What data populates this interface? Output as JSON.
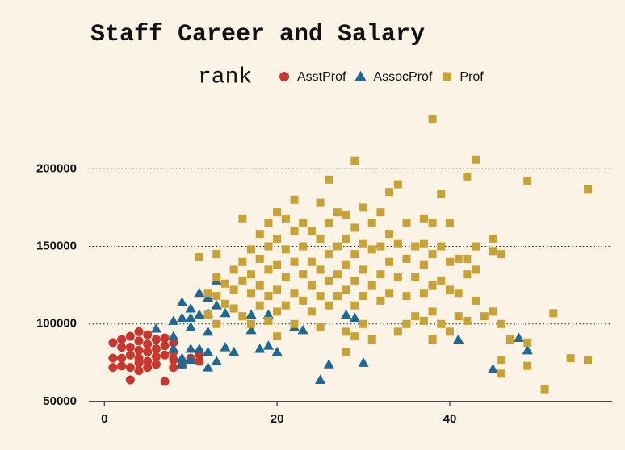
{
  "chart_data": {
    "type": "scatter",
    "title": "Staff Career and Salary",
    "legend_title": "rank",
    "legend_position": "top",
    "grid": true,
    "xlim": [
      -1.8,
      58.8
    ],
    "xticks": [
      0,
      20,
      40
    ],
    "ylim": [
      50000,
      236000
    ],
    "yticks": [
      50000,
      100000,
      150000,
      200000
    ],
    "series": [
      {
        "name": "AsstProf",
        "color": "#c8372d",
        "marker": "circle",
        "x": [
          1,
          1,
          1,
          2,
          2,
          2,
          2,
          3,
          3,
          3,
          3,
          3,
          4,
          4,
          4,
          4,
          4,
          4,
          5,
          5,
          5,
          5,
          5,
          6,
          6,
          6,
          6,
          7,
          7,
          7,
          7,
          8,
          8,
          8,
          8,
          9,
          10,
          11,
          11
        ],
        "values": [
          88000,
          78000,
          72000,
          85000,
          90000,
          78000,
          73000,
          92000,
          85000,
          80000,
          72000,
          64000,
          95000,
          89000,
          83000,
          78000,
          75000,
          70000,
          93000,
          87000,
          82000,
          76000,
          72000,
          90000,
          84000,
          79000,
          74000,
          91000,
          86000,
          80000,
          63000,
          88000,
          82000,
          77000,
          72000,
          74000,
          78000,
          80000,
          76000
        ]
      },
      {
        "name": "AssocProf",
        "color": "#1d6994",
        "marker": "triangle",
        "x": [
          6,
          8,
          8,
          9,
          9,
          9,
          9,
          10,
          10,
          10,
          10,
          11,
          11,
          11,
          12,
          12,
          12,
          12,
          13,
          13,
          13,
          14,
          14,
          15,
          17,
          17,
          18,
          19,
          19,
          20,
          22,
          23,
          25,
          26,
          28,
          29,
          30,
          41,
          45,
          48,
          49,
          8,
          10,
          12
        ],
        "values": [
          97000,
          102000,
          84000,
          114000,
          104000,
          78000,
          74000,
          110000,
          98000,
          84000,
          77000,
          120000,
          106000,
          84000,
          117000,
          95000,
          82000,
          72000,
          128000,
          112000,
          76000,
          107000,
          85000,
          82000,
          106000,
          96000,
          84000,
          106000,
          86000,
          82000,
          98000,
          96000,
          64000,
          74000,
          106000,
          104000,
          75000,
          90000,
          71000,
          91000,
          83000,
          92000,
          104000,
          107000
        ]
      },
      {
        "name": "Prof",
        "color": "#c9a236",
        "marker": "square",
        "x": [
          11,
          12,
          12,
          13,
          13,
          13,
          13,
          14,
          14,
          15,
          15,
          15,
          16,
          16,
          16,
          16,
          17,
          17,
          17,
          17,
          18,
          18,
          18,
          18,
          19,
          19,
          19,
          19,
          19,
          20,
          20,
          20,
          20,
          20,
          20,
          21,
          21,
          21,
          21,
          22,
          22,
          22,
          22,
          22,
          23,
          23,
          23,
          23,
          24,
          24,
          24,
          24,
          25,
          25,
          25,
          25,
          25,
          26,
          26,
          26,
          26,
          26,
          27,
          27,
          27,
          27,
          28,
          28,
          28,
          28,
          28,
          28,
          29,
          29,
          29,
          29,
          29,
          29,
          30,
          30,
          30,
          30,
          30,
          31,
          31,
          31,
          31,
          32,
          32,
          32,
          32,
          33,
          33,
          33,
          33,
          34,
          34,
          34,
          34,
          35,
          35,
          35,
          35,
          36,
          36,
          36,
          37,
          37,
          37,
          37,
          37,
          38,
          38,
          38,
          38,
          38,
          38,
          39,
          39,
          39,
          39,
          40,
          40,
          40,
          40,
          41,
          41,
          41,
          42,
          42,
          42,
          42,
          43,
          43,
          43,
          43,
          44,
          45,
          45,
          45,
          46,
          46,
          46,
          46,
          47,
          49,
          49,
          49,
          51,
          52,
          54,
          56,
          56
        ],
        "values": [
          143000,
          120000,
          106000,
          145000,
          130000,
          118000,
          100000,
          126000,
          113000,
          135000,
          122000,
          110000,
          168000,
          140000,
          128000,
          105000,
          148000,
          132000,
          120000,
          100000,
          158000,
          142000,
          125000,
          112000,
          165000,
          150000,
          135000,
          118000,
          102000,
          172000,
          155000,
          138000,
          122000,
          108000,
          92000,
          168000,
          148000,
          130000,
          112000,
          180000,
          160000,
          140000,
          120000,
          100000,
          165000,
          150000,
          132000,
          115000,
          160000,
          140000,
          125000,
          108000,
          178000,
          155000,
          135000,
          118000,
          98000,
          193000,
          165000,
          145000,
          128000,
          112000,
          172000,
          150000,
          132000,
          118000,
          170000,
          155000,
          138000,
          122000,
          95000,
          82000,
          205000,
          162000,
          145000,
          128000,
          112000,
          92000,
          175000,
          152000,
          135000,
          118000,
          100000,
          165000,
          148000,
          125000,
          90000,
          172000,
          150000,
          132000,
          115000,
          185000,
          158000,
          140000,
          120000,
          190000,
          152000,
          130000,
          95000,
          165000,
          142000,
          118000,
          100000,
          150000,
          130000,
          105000,
          168000,
          152000,
          138000,
          120000,
          102000,
          232000,
          165000,
          145000,
          125000,
          108000,
          90000,
          184000,
          150000,
          128000,
          100000,
          165000,
          140000,
          122000,
          95000,
          142000,
          120000,
          105000,
          195000,
          142000,
          132000,
          102000,
          206000,
          150000,
          135000,
          115000,
          105000,
          155000,
          147000,
          108000,
          145000,
          100000,
          77000,
          68000,
          90000,
          192000,
          73000,
          88000,
          58000,
          107000,
          78000,
          187000,
          77000
        ]
      }
    ]
  }
}
